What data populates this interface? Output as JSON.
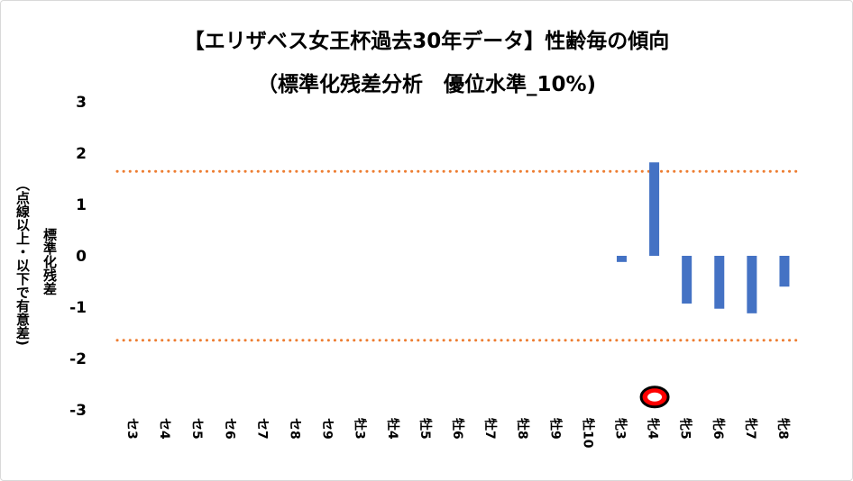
{
  "chart_data": {
    "type": "bar",
    "title": "【エリザベス女王杯過去30年データ】性齢毎の傾向",
    "subtitle": "（標準化残差分析　優位水準_10%)",
    "ylabel_line1": "標準化残差",
    "ylabel_line2": "（点線以上・以下で有意差)",
    "xlabel": "",
    "ylim": [
      -3,
      3
    ],
    "yticks": [
      3,
      2,
      1,
      0,
      -1,
      -2,
      -3
    ],
    "categories": [
      "セ3",
      "セ4",
      "セ5",
      "セ6",
      "セ7",
      "セ8",
      "セ9",
      "牡3",
      "牡4",
      "牡5",
      "牡6",
      "牡7",
      "牡8",
      "牡9",
      "牡10",
      "牝3",
      "牝4",
      "牝5",
      "牝6",
      "牝7",
      "牝8"
    ],
    "values": [
      0,
      0,
      0,
      0,
      0,
      0,
      0,
      0,
      0,
      0,
      0,
      0,
      0,
      0,
      0,
      -0.12,
      1.82,
      -0.93,
      -1.03,
      -1.12,
      -0.6
    ],
    "threshold_lines": [
      1.645,
      -1.645
    ],
    "bar_color": "#4472c4",
    "threshold_color": "#ed7d31",
    "marker": {
      "category": "牝4",
      "y": -2.75,
      "shape": "circle",
      "fill": "#ff0000",
      "stroke": "#000000"
    },
    "grid": false,
    "legend": "none"
  }
}
